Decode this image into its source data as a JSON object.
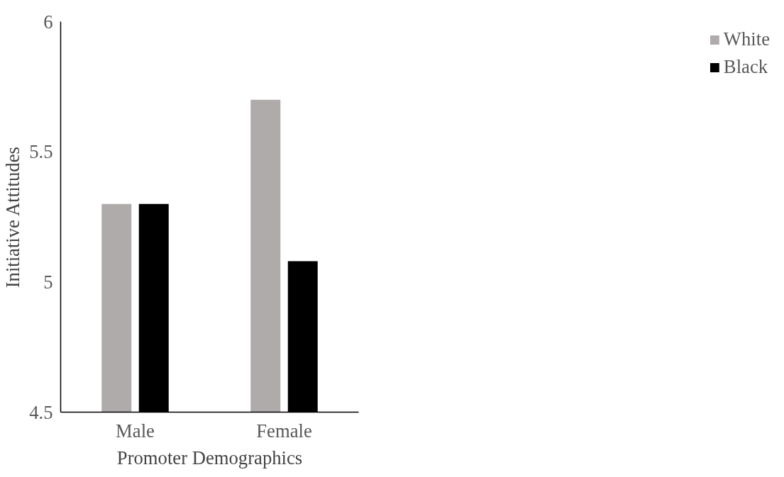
{
  "chart_data": {
    "type": "bar",
    "xlabel": "Promoter Demographics",
    "ylabel": "Initiative Attitudes",
    "categories": [
      "Male",
      "Female"
    ],
    "series": [
      {
        "name": "White",
        "color": "#afabab",
        "values": [
          5.3,
          5.7
        ]
      },
      {
        "name": "Black",
        "color": "#000000",
        "values": [
          5.3,
          5.08
        ]
      }
    ],
    "ylim": [
      4.5,
      6
    ],
    "yticks": [
      4.5,
      5,
      5.5,
      6
    ],
    "grid": false,
    "legend": "right"
  }
}
